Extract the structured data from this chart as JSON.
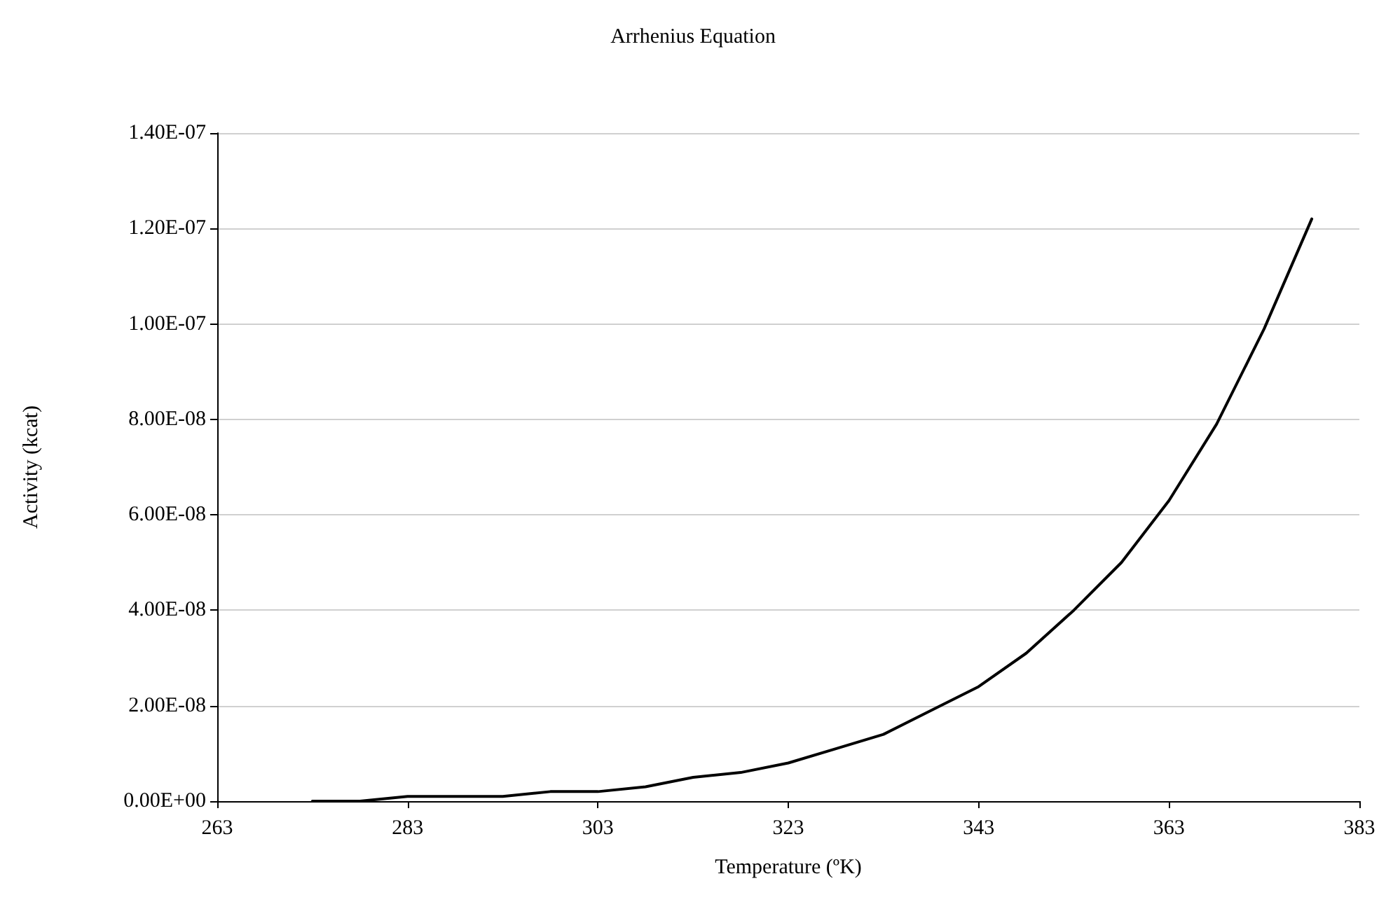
{
  "chart_data": {
    "type": "line",
    "title": "Arrhenius Equation",
    "xlabel": "Temperature (ºK)",
    "ylabel": "Activity (kcat)",
    "x": [
      273,
      278,
      283,
      288,
      293,
      298,
      303,
      308,
      313,
      318,
      323,
      328,
      333,
      338,
      343,
      348,
      353,
      358,
      363,
      368,
      373,
      378
    ],
    "series": [
      {
        "color": "#000000",
        "values": [
          0,
          0,
          1e-09,
          1e-09,
          1e-09,
          2e-09,
          2e-09,
          3e-09,
          5e-09,
          6e-09,
          8e-09,
          1.1e-08,
          1.4e-08,
          1.9e-08,
          2.4e-08,
          3.1e-08,
          4e-08,
          5e-08,
          6.3e-08,
          7.9e-08,
          9.9e-08,
          1.22e-07
        ]
      }
    ],
    "xlim": [
      263,
      383
    ],
    "xticks": [
      263,
      283,
      303,
      323,
      343,
      363,
      383
    ],
    "ylim": [
      0,
      1.4e-07
    ],
    "yticks": [
      {
        "value": 0,
        "label": "0.00E+00"
      },
      {
        "value": 2e-08,
        "label": "2.00E-08"
      },
      {
        "value": 4e-08,
        "label": "4.00E-08"
      },
      {
        "value": 6e-08,
        "label": "6.00E-08"
      },
      {
        "value": 8e-08,
        "label": "8.00E-08"
      },
      {
        "value": 1e-07,
        "label": "1.00E-07"
      },
      {
        "value": 1.2e-07,
        "label": "1.20E-07"
      },
      {
        "value": 1.4e-07,
        "label": "1.40E-07"
      }
    ],
    "grid": "y",
    "marker": "none",
    "line_style": "solid"
  }
}
